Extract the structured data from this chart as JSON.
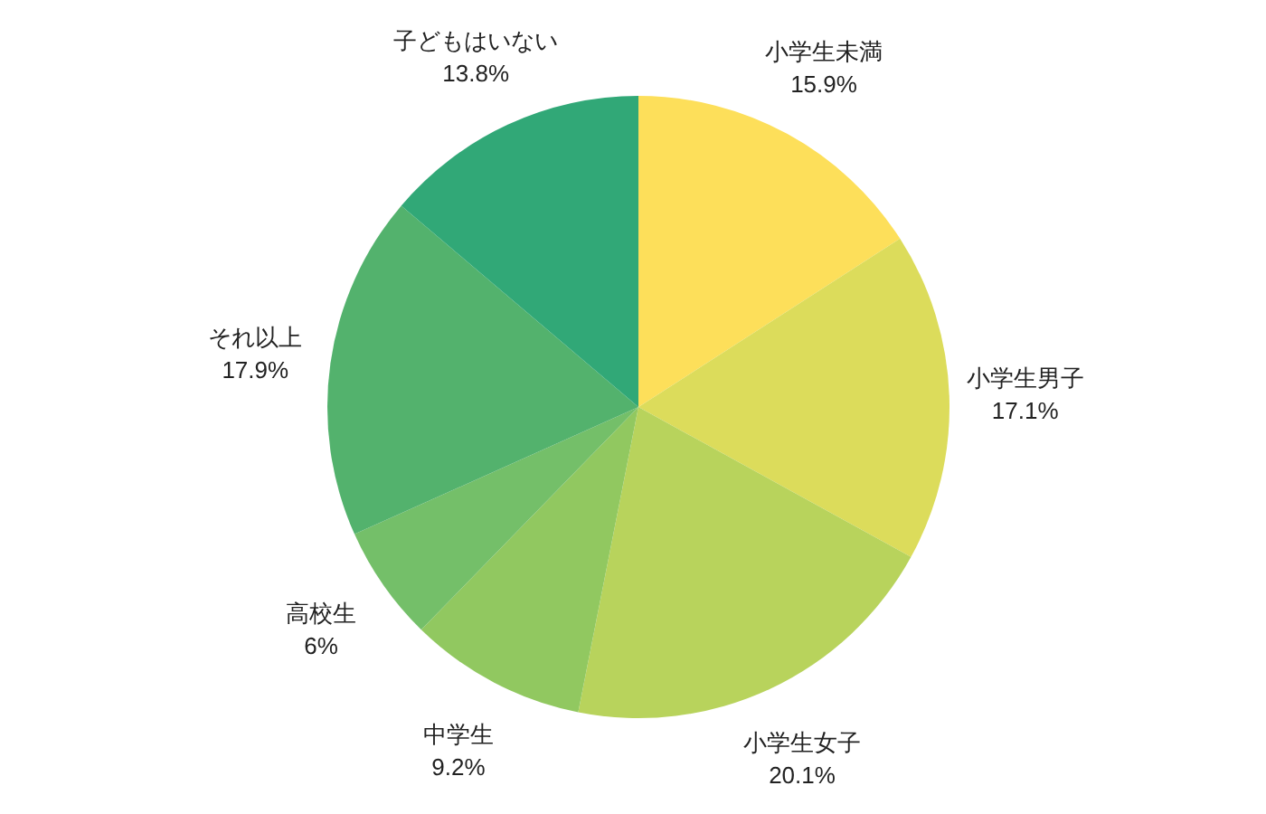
{
  "chart_data": {
    "type": "pie",
    "categories": [
      "小学生未満",
      "小学生男子",
      "小学生女子",
      "中学生",
      "高校生",
      "それ以上",
      "子どもはいない"
    ],
    "values": [
      15.9,
      17.1,
      20.1,
      9.2,
      6,
      17.9,
      13.8
    ],
    "colors": [
      "#fddf5a",
      "#dcdc5b",
      "#b8d35c",
      "#91c860",
      "#74bf69",
      "#53b26d",
      "#31a877"
    ],
    "value_labels": [
      "15.9%",
      "17.1%",
      "20.1%",
      "9.2%",
      "6%",
      "17.9%",
      "13.8%"
    ]
  }
}
